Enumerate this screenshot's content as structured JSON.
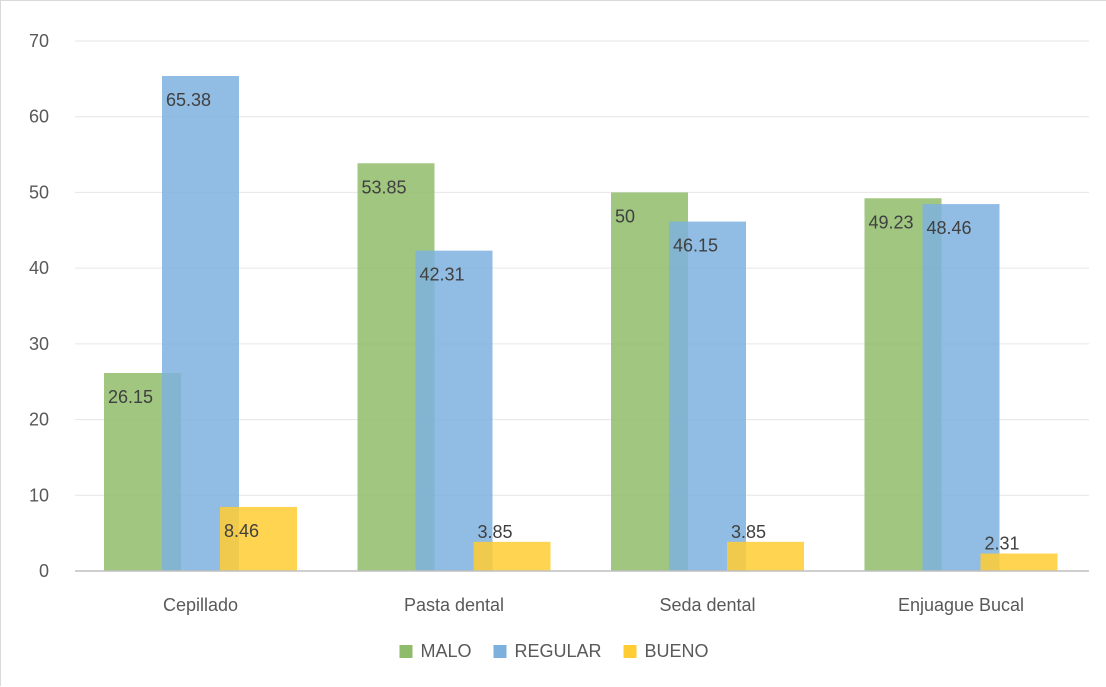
{
  "chart_data": {
    "type": "bar",
    "title": "",
    "xlabel": "",
    "ylabel": "",
    "categories": [
      "Cepillado",
      "Pasta dental",
      "Seda dental",
      "Enjuague Bucal"
    ],
    "series": [
      {
        "name": "MALO",
        "color": "#8fbc6a",
        "values": [
          26.15,
          53.85,
          50,
          49.23
        ],
        "labels": [
          "26.15",
          "53.85",
          "50",
          "49.23"
        ]
      },
      {
        "name": "REGULAR",
        "color": "#7eb0de",
        "values": [
          65.38,
          42.31,
          46.15,
          48.46
        ],
        "labels": [
          "65.38",
          "42.31",
          "46.15",
          "48.46"
        ]
      },
      {
        "name": "BUENO",
        "color": "#ffcc33",
        "values": [
          8.46,
          3.85,
          3.85,
          2.31
        ],
        "labels": [
          "8.46",
          "3.85",
          "3.85",
          "2.31"
        ]
      }
    ],
    "ylim": [
      0,
      70
    ],
    "yticks": [
      0,
      10,
      20,
      30,
      40,
      50,
      60,
      70
    ],
    "ytick_labels": [
      "0",
      "10",
      "20",
      "30",
      "40",
      "50",
      "60",
      "70"
    ],
    "grid": true,
    "legend_position": "bottom",
    "bar_opacity": 0.85
  }
}
